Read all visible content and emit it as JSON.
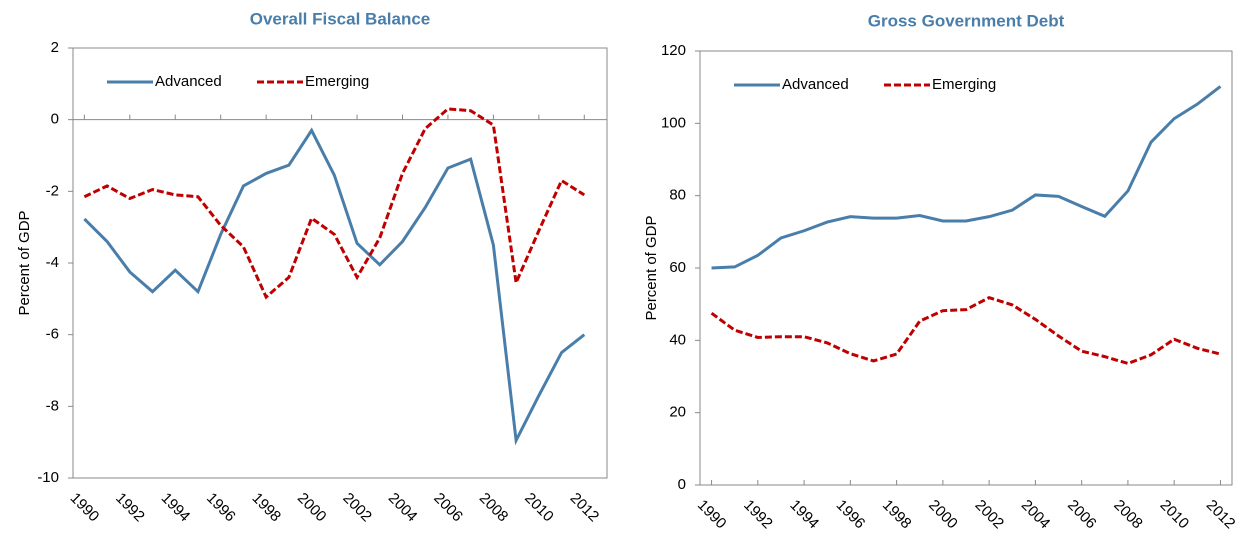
{
  "chart_data": [
    {
      "type": "line",
      "title": "Overall Fiscal Balance",
      "y_label": "Percent of GDP",
      "x": [
        1990,
        1991,
        1992,
        1993,
        1994,
        1995,
        1996,
        1997,
        1998,
        1999,
        2000,
        2001,
        2002,
        2003,
        2004,
        2005,
        2006,
        2007,
        2008,
        2009,
        2010,
        2011,
        2012
      ],
      "xlim": [
        1989.5,
        2013
      ],
      "xticks": [
        1990,
        1992,
        1994,
        1996,
        1998,
        2000,
        2002,
        2004,
        2006,
        2008,
        2010,
        2012
      ],
      "ylim": [
        -10,
        2
      ],
      "yticks": [
        -10,
        -8,
        -6,
        -4,
        -2,
        0,
        2
      ],
      "legend": "upper left",
      "series": [
        {
          "name": "Advanced",
          "color": "#4a7eaa",
          "linestyle": "solid",
          "values": [
            -2.77,
            -3.4,
            -4.25,
            -4.8,
            -4.2,
            -4.8,
            -3.2,
            -1.85,
            -1.5,
            -1.27,
            -0.3,
            -1.55,
            -3.45,
            -4.05,
            -3.4,
            -2.45,
            -1.35,
            -1.1,
            -3.5,
            -8.95,
            -7.7,
            -6.5,
            -6.0
          ]
        },
        {
          "name": "Emerging",
          "color": "#c00000",
          "linestyle": "dashed",
          "values": [
            -2.15,
            -1.85,
            -2.2,
            -1.95,
            -2.1,
            -2.15,
            -2.95,
            -3.55,
            -4.95,
            -4.4,
            -2.75,
            -3.2,
            -4.4,
            -3.3,
            -1.5,
            -0.25,
            0.3,
            0.25,
            -0.15,
            -4.55,
            -3.1,
            -1.7,
            -2.1
          ]
        }
      ]
    },
    {
      "type": "line",
      "title": "Gross Government Debt",
      "y_label": "Percent of GDP",
      "x": [
        1990,
        1991,
        1992,
        1993,
        1994,
        1995,
        1996,
        1997,
        1998,
        1999,
        2000,
        2001,
        2002,
        2003,
        2004,
        2005,
        2006,
        2007,
        2008,
        2009,
        2010,
        2011,
        2012
      ],
      "xlim": [
        1989.5,
        2012.5
      ],
      "xticks": [
        1990,
        1992,
        1994,
        1996,
        1998,
        2000,
        2002,
        2004,
        2006,
        2008,
        2010,
        2012
      ],
      "ylim": [
        0,
        120
      ],
      "yticks": [
        0,
        20,
        40,
        60,
        80,
        100,
        120
      ],
      "legend": "upper left",
      "series": [
        {
          "name": "Advanced",
          "color": "#4a7eaa",
          "linestyle": "solid",
          "values": [
            60,
            60.3,
            63.5,
            68.3,
            70.3,
            72.7,
            74.2,
            73.8,
            73.8,
            74.5,
            73,
            73,
            74.2,
            76,
            80.2,
            79.8,
            77,
            74.3,
            81.3,
            94.8,
            101.3,
            105.3,
            110.2
          ]
        },
        {
          "name": "Emerging",
          "color": "#c00000",
          "linestyle": "dashed",
          "values": [
            47.5,
            42.8,
            40.8,
            41,
            41,
            39.3,
            36.3,
            34.3,
            36.2,
            45.3,
            48.2,
            48.5,
            51.8,
            49.8,
            45.8,
            41.2,
            37,
            35.5,
            33.6,
            36,
            40.3,
            37.8,
            36.2
          ]
        }
      ]
    }
  ]
}
